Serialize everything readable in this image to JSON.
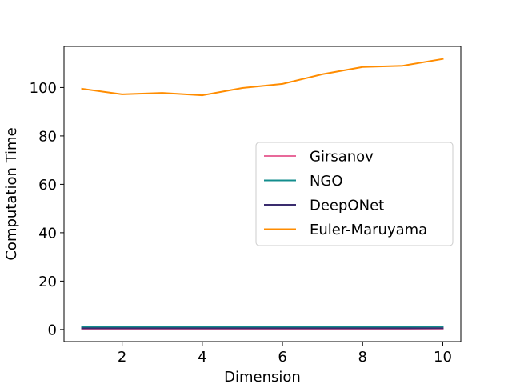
{
  "chart_data": {
    "type": "line",
    "title": "",
    "xlabel": "Dimension",
    "ylabel": "Computation Time",
    "xlim": [
      0.55,
      10.45
    ],
    "ylim": [
      -5.0,
      117.0
    ],
    "xticks": [
      2,
      4,
      6,
      8,
      10
    ],
    "yticks": [
      0,
      20,
      40,
      60,
      80,
      100
    ],
    "grid": false,
    "legend_position": "center-right",
    "x": [
      1,
      2,
      3,
      4,
      5,
      6,
      7,
      8,
      9,
      10
    ],
    "series": [
      {
        "name": "Girsanov",
        "color": "#e8699a",
        "values": [
          0.3,
          0.3,
          0.3,
          0.3,
          0.3,
          0.3,
          0.3,
          0.3,
          0.3,
          0.35
        ]
      },
      {
        "name": "NGO",
        "color": "#138d8d",
        "values": [
          1.0,
          1.0,
          1.0,
          1.0,
          1.0,
          1.05,
          1.05,
          1.05,
          1.1,
          1.15
        ]
      },
      {
        "name": "DeepONet",
        "color": "#3a2c6e",
        "values": [
          0.5,
          0.5,
          0.5,
          0.5,
          0.5,
          0.5,
          0.5,
          0.5,
          0.5,
          0.55
        ]
      },
      {
        "name": "Euler-Maruyama",
        "color": "#ff8c00",
        "values": [
          99.5,
          97.2,
          97.8,
          96.8,
          99.8,
          101.5,
          105.5,
          108.5,
          109.0,
          111.8
        ]
      }
    ]
  }
}
